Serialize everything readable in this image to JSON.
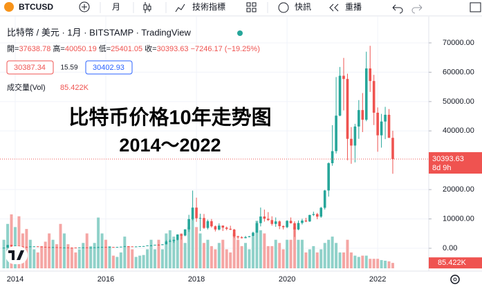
{
  "toolbar": {
    "symbol": "BTCUSD",
    "interval": "月",
    "indicators": "技術指標",
    "alerts": "快訊",
    "replay": "重播"
  },
  "legend": {
    "title": "比特幣 / 美元 · 1月 · BITSTAMP · TradingView",
    "ohlc": [
      {
        "label": "開=",
        "value": "37638.78"
      },
      {
        "label": "高=",
        "value": "40050.19"
      },
      {
        "label": "低=",
        "value": "25401.05"
      },
      {
        "label": "收=",
        "value": "30393.63"
      }
    ],
    "change": "−7246.17 (−19.25%)",
    "bid": "30387.34",
    "spread": "15.59",
    "ask": "30402.93",
    "volume_name": "成交量(Vol)",
    "volume_value": "85.422K"
  },
  "chart_data": {
    "type": "candlestick",
    "title": "比特币价格10年走势图",
    "subtitle": "2014～2022",
    "categories": [
      null,
      null,
      null,
      "2014",
      null,
      null,
      null,
      null,
      null,
      null,
      null,
      null,
      null,
      null,
      null,
      null,
      null,
      null,
      null,
      null,
      null,
      null,
      null,
      null,
      null,
      null,
      null,
      "2016",
      null,
      null,
      null,
      null,
      null,
      null,
      null,
      null,
      null,
      null,
      null,
      null,
      null,
      null,
      null,
      null,
      null,
      null,
      null,
      null,
      null,
      null,
      null,
      "2018",
      null,
      null,
      null,
      null,
      null,
      null,
      null,
      null,
      null,
      null,
      null,
      null,
      null,
      null,
      null,
      null,
      null,
      null,
      null,
      null,
      null,
      null,
      null,
      "2020",
      null,
      null,
      null,
      null,
      null,
      null,
      null,
      null,
      null,
      null,
      null,
      null,
      null,
      null,
      null,
      null,
      null,
      null,
      null,
      null,
      null,
      null,
      null,
      "2022",
      null,
      null,
      null,
      null
    ],
    "open": [
      128,
      204,
      1130,
      730,
      800,
      550,
      450,
      446,
      628,
      640,
      585,
      478,
      387,
      338,
      375,
      320,
      217,
      254,
      244,
      236,
      230,
      263,
      284,
      230,
      236,
      313,
      377,
      430,
      368,
      437,
      416,
      448,
      531,
      673,
      624,
      573,
      608,
      698,
      742,
      963,
      970,
      1190,
      1080,
      1350,
      2300,
      2480,
      2870,
      4700,
      4340,
      6450,
      9950,
      13860,
      10220,
      10330,
      6930,
      9240,
      7490,
      6400,
      7730,
      7030,
      6630,
      6370,
      4040,
      3740,
      3460,
      3810,
      4100,
      5320,
      8560,
      10820,
      10080,
      9600,
      8300,
      9150,
      7550,
      7190,
      9350,
      8540,
      6420,
      8620,
      9450,
      9140,
      11350,
      11650,
      10780,
      13800,
      19700,
      28990,
      33100,
      45200,
      58800,
      57700,
      37300,
      35000,
      41500,
      47100,
      43800,
      61300,
      57000,
      46200,
      38500,
      43200,
      45500,
      37638.78
    ],
    "high": [
      230,
      1163,
      1150,
      1000,
      850,
      720,
      550,
      630,
      680,
      660,
      600,
      500,
      420,
      460,
      390,
      320,
      265,
      300,
      260,
      248,
      268,
      318,
      285,
      246,
      325,
      495,
      470,
      465,
      445,
      440,
      470,
      550,
      780,
      700,
      625,
      625,
      720,
      755,
      975,
      1150,
      1200,
      1350,
      1350,
      2770,
      3000,
      2950,
      4750,
      5000,
      6470,
      11400,
      19666,
      17250,
      11780,
      11700,
      9770,
      9990,
      7760,
      8500,
      7760,
      7400,
      7680,
      6600,
      4300,
      4100,
      4200,
      4150,
      5640,
      9100,
      13880,
      13200,
      12330,
      10900,
      10500,
      9500,
      7780,
      9580,
      10500,
      9190,
      9470,
      10070,
      10380,
      11420,
      12470,
      12060,
      14100,
      19900,
      29300,
      41950,
      58350,
      61790,
      64860,
      59500,
      41300,
      42400,
      50500,
      52900,
      67000,
      69000,
      59100,
      47990,
      45800,
      48200,
      47450,
      40050.19
    ],
    "low": [
      121,
      197,
      455,
      720,
      430,
      450,
      340,
      420,
      550,
      565,
      440,
      350,
      275,
      320,
      300,
      152,
      210,
      235,
      214,
      230,
      222,
      253,
      190,
      225,
      236,
      305,
      355,
      350,
      365,
      401,
      412,
      440,
      525,
      580,
      470,
      570,
      605,
      680,
      740,
      750,
      915,
      890,
      1060,
      1350,
      2100,
      1840,
      2670,
      2950,
      4100,
      5600,
      9500,
      9000,
      5870,
      6600,
      6420,
      7050,
      5750,
      6070,
      5880,
      6120,
      6180,
      3500,
      3150,
      3350,
      3400,
      3730,
      4080,
      5320,
      7450,
      9070,
      9320,
      7700,
      7300,
      6520,
      6430,
      6860,
      8440,
      3850,
      6160,
      8100,
      8920,
      8990,
      10980,
      9900,
      10370,
      13200,
      17600,
      28130,
      32300,
      45000,
      47000,
      30000,
      28800,
      29280,
      37300,
      39600,
      43300,
      53300,
      42000,
      32900,
      34300,
      37200,
      37600,
      25401.05
    ],
    "close": [
      204,
      1130,
      730,
      800,
      550,
      450,
      446,
      628,
      640,
      585,
      478,
      387,
      338,
      375,
      320,
      217,
      254,
      244,
      236,
      230,
      263,
      284,
      230,
      236,
      313,
      377,
      430,
      368,
      437,
      416,
      448,
      531,
      673,
      624,
      573,
      608,
      698,
      742,
      963,
      970,
      1190,
      1080,
      1350,
      2300,
      2480,
      2870,
      4700,
      4340,
      6450,
      9950,
      13860,
      10220,
      10330,
      6930,
      9240,
      7490,
      6400,
      7730,
      7030,
      6630,
      6370,
      4040,
      3740,
      3460,
      3810,
      4100,
      5320,
      8560,
      10820,
      10080,
      9600,
      8300,
      9150,
      7550,
      7190,
      9350,
      8540,
      6420,
      8620,
      9450,
      9140,
      11350,
      11650,
      10780,
      13800,
      19700,
      28990,
      33100,
      45200,
      58800,
      57700,
      37300,
      35000,
      41500,
      47100,
      43800,
      61300,
      57000,
      46200,
      38500,
      43200,
      45500,
      37640,
      30393.63
    ],
    "volume": [
      450000,
      700000,
      850000,
      650000,
      820000,
      550000,
      620000,
      450000,
      300000,
      250000,
      350000,
      420000,
      550000,
      450000,
      380000,
      700000,
      550000,
      380000,
      320000,
      250000,
      300000,
      400000,
      550000,
      350000,
      400000,
      800000,
      550000,
      450000,
      350000,
      200000,
      180000,
      250000,
      500000,
      350000,
      300000,
      180000,
      200000,
      210000,
      300000,
      450000,
      300000,
      450000,
      300000,
      550000,
      600000,
      500000,
      450000,
      550000,
      400000,
      650000,
      800000,
      650000,
      550000,
      400000,
      450000,
      350000,
      300000,
      400000,
      450000,
      300000,
      250000,
      550000,
      450000,
      350000,
      400000,
      300000,
      500000,
      750000,
      600000,
      550000,
      350000,
      350000,
      450000,
      400000,
      300000,
      450000,
      450000,
      650000,
      450000,
      450000,
      250000,
      300000,
      350000,
      250000,
      300000,
      400000,
      450000,
      500000,
      400000,
      250000,
      250000,
      450000,
      250000,
      200000,
      180000,
      200000,
      200000,
      150000,
      150000,
      150000,
      130000,
      120000,
      110000,
      85422
    ],
    "volume_label": "85.422K",
    "up_color": "#26a69a",
    "down_color": "#ef5350",
    "volume_up_color": "#8fd1c9",
    "volume_down_color": "#f5a6a4",
    "ylim": [
      -7778,
      78956
    ],
    "yticks": [
      {
        "value": 0,
        "label": "0.00"
      },
      {
        "value": 10000,
        "label": "10000.00"
      },
      {
        "value": 20000,
        "label": "20000.00"
      },
      {
        "value": 40000,
        "label": "40000.00"
      },
      {
        "value": 50000,
        "label": "50000.00"
      },
      {
        "value": 60000,
        "label": "60000.00"
      },
      {
        "value": 70000,
        "label": "70000.00"
      }
    ],
    "last_price": {
      "value": 30393.63,
      "label": "30393.63"
    },
    "countdown": "8d 9h",
    "grid": true
  }
}
